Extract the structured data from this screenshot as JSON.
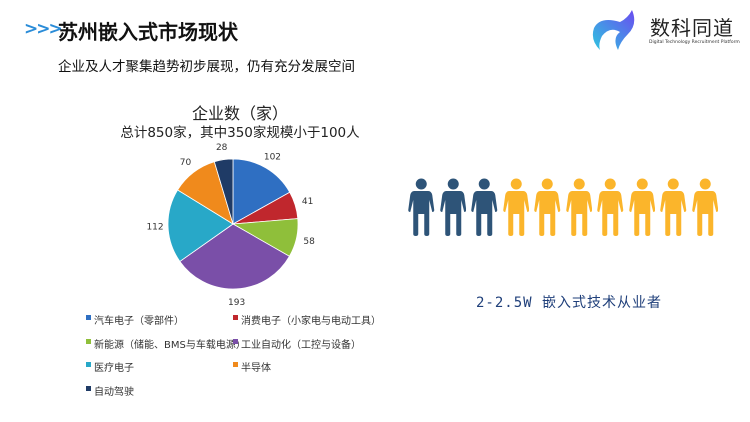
{
  "header": {
    "arrows": ">>>",
    "title": "苏州嵌入式市场现状",
    "subtitle": "企业及人才聚集趋势初步展现，仍有充分发展空间"
  },
  "logo": {
    "name": "数科同道",
    "tagline": "Digital Technology Recruitment Platform"
  },
  "chart_data": {
    "type": "pie",
    "title": "企业数（家）",
    "subtitle": "总计850家，其中350家规模小于100人",
    "start_angle": "12 o'clock, clockwise",
    "legend_placement": "bottom",
    "categories": [
      "汽车电子（零部件）",
      "消费电子（小家电与电动工具）",
      "新能源（储能、BMS与车载电源）",
      "工业自动化（工控与设备）",
      "医疗电子",
      "半导体",
      "自动驾驶"
    ],
    "values": [
      102,
      41,
      58,
      193,
      112,
      70,
      28
    ],
    "value_labels": [
      "102",
      "41",
      "58",
      "193",
      "112",
      "70",
      "28"
    ],
    "colors": [
      "#2f6fc2",
      "#c0272d",
      "#8fbf3a",
      "#7a4fa8",
      "#28a8c8",
      "#f08a1c",
      "#1f3b66"
    ]
  },
  "talent": {
    "dark_count": 3,
    "total_count": 10,
    "dark_color": "#2e5478",
    "light_color": "#fbb52b",
    "caption": "2-2.5W 嵌入式技术从业者"
  }
}
